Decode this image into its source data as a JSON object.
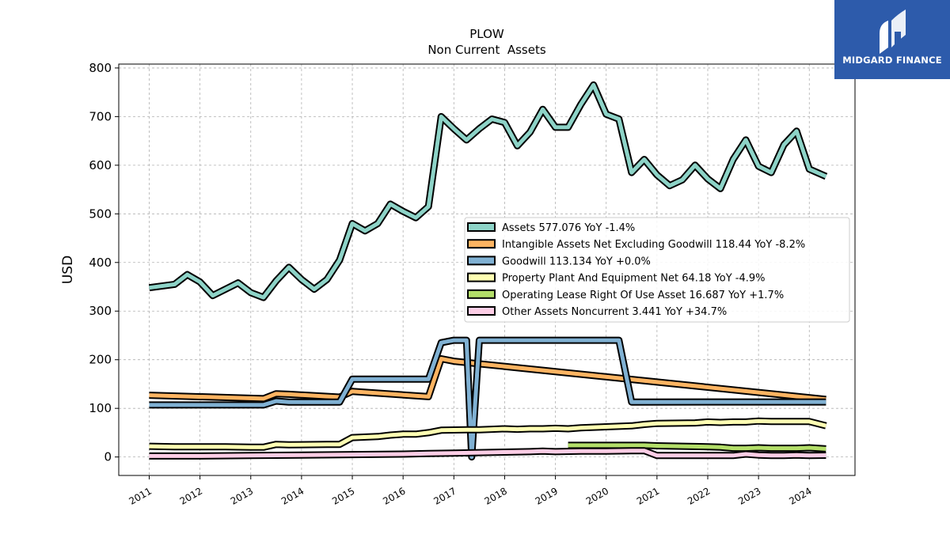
{
  "brand": {
    "name": "MIDGARD FINANCE",
    "bg": "#2d5bab"
  },
  "chart_data": {
    "type": "line",
    "title": "PLOW",
    "subtitle": "Non Current  Assets",
    "ylabel": "USD",
    "xlabel": "",
    "xlim": [
      2010.4,
      2024.9
    ],
    "ylim": [
      -38,
      808
    ],
    "yticks": [
      0,
      100,
      200,
      300,
      400,
      500,
      600,
      700,
      800
    ],
    "xticks": [
      "2011",
      "2012",
      "2013",
      "2014",
      "2015",
      "2016",
      "2017",
      "2018",
      "2019",
      "2020",
      "2021",
      "2022",
      "2023",
      "2024"
    ],
    "grid": true,
    "legend_position": "center-right",
    "series": [
      {
        "name": "Assets",
        "legend": "Assets  577.076 YoY -1.4%",
        "color": "#8dd3c7",
        "points": [
          [
            2011.0,
            348
          ],
          [
            2011.5,
            355
          ],
          [
            2011.75,
            375
          ],
          [
            2012.0,
            360
          ],
          [
            2012.25,
            332
          ],
          [
            2012.5,
            345
          ],
          [
            2012.75,
            358
          ],
          [
            2013.0,
            338
          ],
          [
            2013.25,
            328
          ],
          [
            2013.5,
            362
          ],
          [
            2013.75,
            390
          ],
          [
            2014.0,
            365
          ],
          [
            2014.25,
            345
          ],
          [
            2014.5,
            365
          ],
          [
            2014.75,
            405
          ],
          [
            2015.0,
            480
          ],
          [
            2015.25,
            465
          ],
          [
            2015.5,
            480
          ],
          [
            2015.75,
            520
          ],
          [
            2016.0,
            505
          ],
          [
            2016.25,
            492
          ],
          [
            2016.5,
            515
          ],
          [
            2016.75,
            700
          ],
          [
            2017.0,
            675
          ],
          [
            2017.25,
            652
          ],
          [
            2017.5,
            675
          ],
          [
            2017.75,
            695
          ],
          [
            2018.0,
            688
          ],
          [
            2018.25,
            640
          ],
          [
            2018.5,
            668
          ],
          [
            2018.75,
            715
          ],
          [
            2019.0,
            678
          ],
          [
            2019.25,
            678
          ],
          [
            2019.5,
            725
          ],
          [
            2019.75,
            765
          ],
          [
            2020.0,
            705
          ],
          [
            2020.25,
            695
          ],
          [
            2020.5,
            585
          ],
          [
            2020.75,
            612
          ],
          [
            2021.0,
            580
          ],
          [
            2021.25,
            558
          ],
          [
            2021.5,
            570
          ],
          [
            2021.75,
            600
          ],
          [
            2022.0,
            572
          ],
          [
            2022.25,
            552
          ],
          [
            2022.5,
            612
          ],
          [
            2022.75,
            652
          ],
          [
            2023.0,
            598
          ],
          [
            2023.25,
            585
          ],
          [
            2023.5,
            642
          ],
          [
            2023.75,
            670
          ],
          [
            2024.0,
            592
          ],
          [
            2024.33,
            577
          ]
        ]
      },
      {
        "name": "Intangible Assets Net Excluding Goodwill",
        "legend": "Intangible Assets Net Excluding Goodwill  118.44 YoY -8.2%",
        "color": "#fdb462",
        "points": [
          [
            2011.0,
            127
          ],
          [
            2013.25,
            120
          ],
          [
            2013.5,
            130
          ],
          [
            2013.75,
            129
          ],
          [
            2014.75,
            123
          ],
          [
            2015.0,
            135
          ],
          [
            2016.5,
            124
          ],
          [
            2016.75,
            202
          ],
          [
            2017.0,
            197
          ],
          [
            2024.33,
            118.44
          ]
        ]
      },
      {
        "name": "Goodwill",
        "legend": "Goodwill  113.134 YoY +0.0%",
        "color": "#80b1d3",
        "points": [
          [
            2011.0,
            107
          ],
          [
            2013.25,
            107
          ],
          [
            2013.5,
            115
          ],
          [
            2013.75,
            113
          ],
          [
            2014.75,
            113
          ],
          [
            2015.0,
            160
          ],
          [
            2016.5,
            160
          ],
          [
            2016.75,
            235
          ],
          [
            2017.0,
            240
          ],
          [
            2017.25,
            240
          ],
          [
            2017.35,
            0
          ],
          [
            2017.5,
            240
          ],
          [
            2020.25,
            240
          ],
          [
            2020.5,
            113
          ],
          [
            2024.33,
            113.134
          ]
        ]
      },
      {
        "name": "Property Plant And Equipment Net",
        "legend": "Property Plant And Equipment Net  64.18 YoY -4.9%",
        "color": "#ffffb3",
        "points": [
          [
            2011.0,
            22
          ],
          [
            2011.5,
            21
          ],
          [
            2012.5,
            21
          ],
          [
            2013.0,
            20
          ],
          [
            2013.25,
            20
          ],
          [
            2013.5,
            26
          ],
          [
            2013.75,
            25
          ],
          [
            2014.5,
            26
          ],
          [
            2014.75,
            26
          ],
          [
            2015.0,
            40
          ],
          [
            2015.5,
            42
          ],
          [
            2015.75,
            45
          ],
          [
            2016.0,
            47
          ],
          [
            2016.25,
            47
          ],
          [
            2016.5,
            50
          ],
          [
            2016.75,
            55
          ],
          [
            2017.25,
            56
          ],
          [
            2017.5,
            56
          ],
          [
            2017.75,
            57
          ],
          [
            2018.0,
            58
          ],
          [
            2018.25,
            57
          ],
          [
            2018.5,
            58
          ],
          [
            2018.75,
            58
          ],
          [
            2019.0,
            59
          ],
          [
            2019.25,
            58
          ],
          [
            2019.5,
            60
          ],
          [
            2019.75,
            61
          ],
          [
            2020.0,
            62
          ],
          [
            2020.25,
            63
          ],
          [
            2020.5,
            64
          ],
          [
            2020.75,
            67
          ],
          [
            2021.0,
            69
          ],
          [
            2021.75,
            70
          ],
          [
            2022.0,
            72
          ],
          [
            2022.25,
            71
          ],
          [
            2022.5,
            72
          ],
          [
            2022.75,
            72
          ],
          [
            2023.0,
            74
          ],
          [
            2023.25,
            73
          ],
          [
            2023.75,
            73
          ],
          [
            2024.0,
            73
          ],
          [
            2024.33,
            64.18
          ]
        ]
      },
      {
        "name": "Operating Lease Right Of Use Asset",
        "legend": "Operating Lease Right Of Use Asset  16.687 YoY +1.7%",
        "color": "#b3de69",
        "points": [
          [
            2019.25,
            24
          ],
          [
            2019.5,
            24
          ],
          [
            2019.75,
            24
          ],
          [
            2020.0,
            24
          ],
          [
            2020.25,
            24
          ],
          [
            2020.5,
            24
          ],
          [
            2020.75,
            24
          ],
          [
            2021.0,
            23
          ],
          [
            2021.5,
            22
          ],
          [
            2022.0,
            21
          ],
          [
            2022.25,
            20
          ],
          [
            2022.5,
            18
          ],
          [
            2022.75,
            18
          ],
          [
            2023.0,
            19
          ],
          [
            2023.25,
            18
          ],
          [
            2023.5,
            18
          ],
          [
            2023.75,
            18
          ],
          [
            2024.0,
            19
          ],
          [
            2024.33,
            16.687
          ]
        ]
      },
      {
        "name": "Other Assets Noncurrent",
        "legend": "Other Assets Noncurrent  3.441 YoY +34.7%",
        "color": "#fccde5",
        "points": [
          [
            2011.0,
            2
          ],
          [
            2012.0,
            2
          ],
          [
            2013.0,
            3
          ],
          [
            2014.0,
            4
          ],
          [
            2015.0,
            5
          ],
          [
            2016.0,
            6
          ],
          [
            2016.5,
            7
          ],
          [
            2017.0,
            8
          ],
          [
            2017.5,
            9
          ],
          [
            2018.0,
            10
          ],
          [
            2018.5,
            11
          ],
          [
            2018.75,
            12
          ],
          [
            2019.0,
            11
          ],
          [
            2019.5,
            12
          ],
          [
            2020.0,
            12
          ],
          [
            2020.5,
            13
          ],
          [
            2020.75,
            13
          ],
          [
            2021.0,
            3
          ],
          [
            2021.5,
            3
          ],
          [
            2022.0,
            3
          ],
          [
            2022.25,
            3
          ],
          [
            2022.5,
            3
          ],
          [
            2022.75,
            6
          ],
          [
            2023.0,
            4
          ],
          [
            2023.25,
            3
          ],
          [
            2023.5,
            3
          ],
          [
            2023.75,
            4
          ],
          [
            2024.0,
            3
          ],
          [
            2024.33,
            3.441
          ]
        ]
      }
    ]
  }
}
